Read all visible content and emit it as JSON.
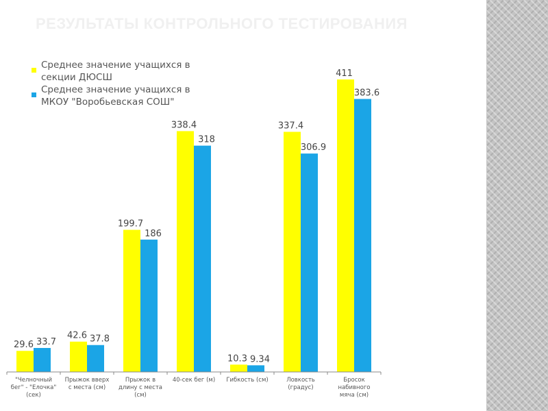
{
  "slide": {
    "title": "РЕЗУЛЬТАТЫ КОНТРОЛЬНОГО ТЕСТИРОВАНИЯ"
  },
  "colors": {
    "series_1": "#ffff00",
    "series_2": "#1ba5e6",
    "side_pattern": "#c4c4c4",
    "axis": "#888888"
  },
  "chart_data": {
    "type": "bar",
    "title": "",
    "xlabel": "",
    "ylabel": "",
    "ylim": [
      0,
      411
    ],
    "grid": false,
    "legend_placement": "top-left",
    "categories": [
      [
        "\"Челночный",
        "бег\" - \"Елочка\"",
        "(сек)"
      ],
      [
        "Прыжок вверх",
        "с места (см)"
      ],
      [
        "Прыжок в",
        "длину с места",
        "(см)"
      ],
      [
        "40-сек бег (м)"
      ],
      [
        "Гибкость (см)"
      ],
      [
        "Ловкость",
        "(градус)"
      ],
      [
        "Бросок",
        "набивного",
        "мяча (см)"
      ]
    ],
    "series": [
      {
        "name": "Среднее значение учащихся в секции ДЮСШ",
        "legend_lines": [
          "Среднее значение учащихся в",
          "секции ДЮСШ"
        ],
        "values": [
          29.6,
          42.6,
          199.7,
          338.4,
          10.3,
          337.4,
          411
        ],
        "labels": [
          "29.6",
          "42.6",
          "199.7",
          "338.4",
          "10.3",
          "337.4",
          "411"
        ]
      },
      {
        "name": "Среднее значение учащихся в МКОУ \"Воробьевская СОШ\"",
        "legend_lines": [
          "Среднее значение учащихся в",
          "МКОУ \"Воробьевская СОШ\""
        ],
        "values": [
          33.7,
          37.8,
          186,
          318,
          9.34,
          306.9,
          383.6
        ],
        "labels": [
          "33.7",
          "37.8",
          "186",
          "318",
          "9.34",
          "306.9",
          "383.6"
        ]
      }
    ]
  }
}
